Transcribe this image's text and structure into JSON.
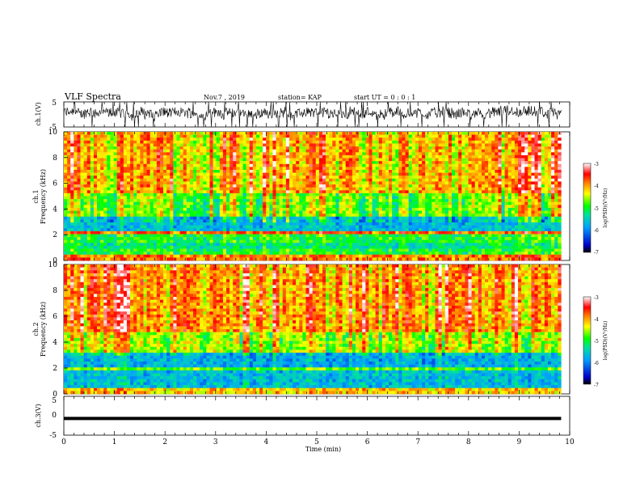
{
  "header": {
    "title": "VLF Spectra",
    "date": "Nov.7 , 2019",
    "station": "station= KAP",
    "start": "start UT = 0 : 0 : 1"
  },
  "chart_data": [
    {
      "type": "line",
      "panel": "ch1-waveform",
      "ylabel": "ch.1(V)",
      "ylim": [
        -5,
        5
      ],
      "ytick_labels": [
        "5",
        "-5"
      ],
      "xlim": [
        0,
        10
      ],
      "x_data_end": 9.83,
      "description_values": {
        "mean": 0.6,
        "min": -5,
        "max": 5
      }
    },
    {
      "type": "heatmap",
      "panel": "ch1-spectrogram",
      "ylabel": "ch.1",
      "ylabel2": "Frequency (kHz)",
      "ylim": [
        0,
        10
      ],
      "ytick_labels": [
        "0",
        "2",
        "4",
        "6",
        "8",
        "10"
      ],
      "xlim": [
        0,
        10
      ],
      "x_data_end": 9.83,
      "colorbar": {
        "label": "log(PSD)(V²/Hz)",
        "range": [
          -7,
          -3
        ],
        "tick_labels": [
          "-3",
          "-4",
          "-5",
          "-6",
          "-7"
        ]
      },
      "band_levels": [
        {
          "f": [
            0,
            0.4
          ],
          "level": -3.9
        },
        {
          "f": [
            0.4,
            0.8
          ],
          "level": -5.0
        },
        {
          "f": [
            0.8,
            1.4
          ],
          "level": -5.3
        },
        {
          "f": [
            1.4,
            2.1
          ],
          "level": -5.0
        },
        {
          "f": [
            2.1,
            2.3
          ],
          "level": -3.8
        },
        {
          "f": [
            2.3,
            3.4
          ],
          "level": -5.7
        },
        {
          "f": [
            3.4,
            5.2
          ],
          "level": -4.8
        },
        {
          "f": [
            5.2,
            10
          ],
          "level": -4.2
        }
      ]
    },
    {
      "type": "heatmap",
      "panel": "ch2-spectrogram",
      "ylabel": "ch.2",
      "ylabel2": "Frequency (kHz)",
      "ylim": [
        0,
        10
      ],
      "ytick_labels": [
        "0",
        "2",
        "4",
        "6",
        "8",
        "10"
      ],
      "xlim": [
        0,
        10
      ],
      "x_data_end": 9.83,
      "colorbar": {
        "label": "log(PSD)(V²/Hz)",
        "range": [
          -7,
          -3
        ],
        "tick_labels": [
          "-3",
          "-4",
          "-5",
          "-6",
          "-7"
        ]
      },
      "band_levels": [
        {
          "f": [
            0,
            0.4
          ],
          "level": -4.2
        },
        {
          "f": [
            0.4,
            1.8
          ],
          "level": -5.7
        },
        {
          "f": [
            1.8,
            2.0
          ],
          "level": -4.8
        },
        {
          "f": [
            2.0,
            3.1
          ],
          "level": -5.8
        },
        {
          "f": [
            3.1,
            4.8
          ],
          "level": -4.7
        },
        {
          "f": [
            4.8,
            10
          ],
          "level": -4.1
        }
      ]
    },
    {
      "type": "line",
      "panel": "ch3-waveform",
      "ylabel": "ch.3(V)",
      "ylim": [
        -5,
        5
      ],
      "ytick_labels": [
        "5",
        "0",
        "-5"
      ],
      "xlim": [
        0,
        10
      ],
      "x_data_end": 9.83,
      "constant_value": -0.7
    }
  ],
  "xaxis": {
    "label": "Time (min)",
    "tick_labels": [
      "0",
      "1",
      "2",
      "3",
      "4",
      "5",
      "6",
      "7",
      "8",
      "9",
      "10"
    ]
  },
  "colors": {
    "colormap": [
      "#000000",
      "#0000c8",
      "#00a0ff",
      "#00e0a0",
      "#00ff00",
      "#ffff00",
      "#ff8000",
      "#ff0000",
      "#ffffff"
    ],
    "trace": "#000000"
  }
}
